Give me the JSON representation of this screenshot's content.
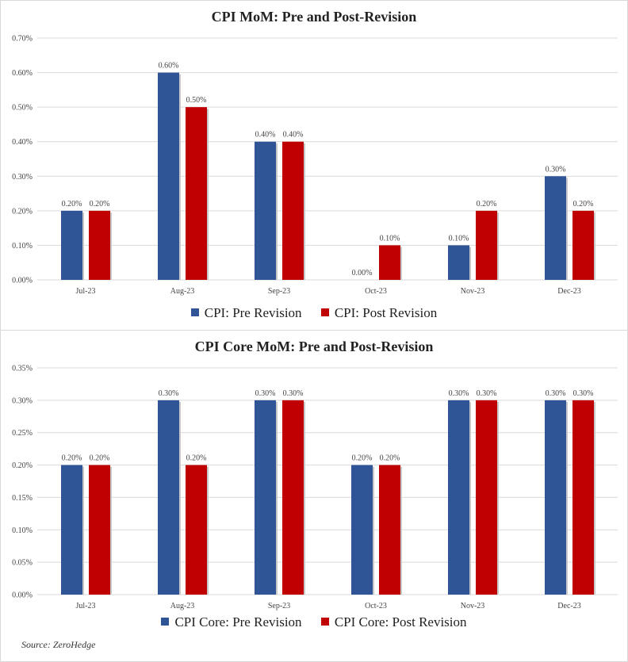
{
  "colors": {
    "pre": "#2f5597",
    "post": "#c00000",
    "grid": "#d9d9d9"
  },
  "chart_data": [
    {
      "type": "bar",
      "title": "CPI MoM: Pre and Post-Revision",
      "categories": [
        "Jul-23",
        "Aug-23",
        "Sep-23",
        "Oct-23",
        "Nov-23",
        "Dec-23"
      ],
      "series": [
        {
          "name": "CPI: Pre Revision",
          "values": [
            0.2,
            0.6,
            0.4,
            0.0,
            0.1,
            0.3
          ],
          "labels": [
            "0.20%",
            "0.60%",
            "0.40%",
            "0.00%",
            "0.10%",
            "0.30%"
          ]
        },
        {
          "name": "CPI: Post Revision",
          "values": [
            0.2,
            0.5,
            0.4,
            0.1,
            0.2,
            0.2
          ],
          "labels": [
            "0.20%",
            "0.50%",
            "0.40%",
            "0.10%",
            "0.20%",
            "0.20%"
          ]
        }
      ],
      "ylim": [
        0,
        0.7
      ],
      "yticks": [
        "0.00%",
        "0.10%",
        "0.20%",
        "0.30%",
        "0.40%",
        "0.50%",
        "0.60%",
        "0.70%"
      ],
      "grid": true,
      "legend": "bottom"
    },
    {
      "type": "bar",
      "title": "CPI Core MoM: Pre and Post-Revision",
      "categories": [
        "Jul-23",
        "Aug-23",
        "Sep-23",
        "Oct-23",
        "Nov-23",
        "Dec-23"
      ],
      "series": [
        {
          "name": "CPI Core: Pre Revision",
          "values": [
            0.2,
            0.3,
            0.3,
            0.2,
            0.3,
            0.3
          ],
          "labels": [
            "0.20%",
            "0.30%",
            "0.30%",
            "0.20%",
            "0.30%",
            "0.30%"
          ]
        },
        {
          "name": "CPI Core: Post Revision",
          "values": [
            0.2,
            0.2,
            0.3,
            0.2,
            0.3,
            0.3
          ],
          "labels": [
            "0.20%",
            "0.20%",
            "0.30%",
            "0.20%",
            "0.30%",
            "0.30%"
          ]
        }
      ],
      "ylim": [
        0,
        0.35
      ],
      "yticks": [
        "0.00%",
        "0.05%",
        "0.10%",
        "0.15%",
        "0.20%",
        "0.25%",
        "0.30%",
        "0.35%"
      ],
      "grid": true,
      "legend": "bottom"
    }
  ],
  "source": "Source: ZeroHedge"
}
